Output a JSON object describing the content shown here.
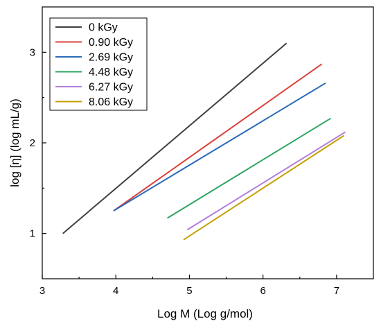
{
  "chart_data": {
    "type": "line",
    "title": "",
    "xlabel": "Log M (Log g/mol)",
    "ylabel": "log [η] (log mL/g)",
    "xlim": [
      3,
      7.5
    ],
    "ylim": [
      0.5,
      3.5
    ],
    "x_ticks": [
      3,
      4,
      5,
      6,
      7
    ],
    "y_ticks": [
      1,
      2,
      3
    ],
    "x_tick_labels": [
      "3",
      "4",
      "5",
      "6",
      "7"
    ],
    "y_tick_labels": [
      "1",
      "2",
      "3"
    ],
    "grid": false,
    "legend_position": "top-left",
    "series": [
      {
        "name": "0 kGy",
        "color": "#404040",
        "x": [
          3.28,
          6.32
        ],
        "y": [
          1.0,
          3.1
        ]
      },
      {
        "name": "0.90 kGy",
        "color": "#d9423b",
        "x": [
          3.97,
          6.8
        ],
        "y": [
          1.25,
          2.87
        ]
      },
      {
        "name": "2.69 kGy",
        "color": "#2a6ab8",
        "x": [
          3.97,
          6.85
        ],
        "y": [
          1.25,
          2.66
        ]
      },
      {
        "name": "4.48 kGy",
        "color": "#2ca563",
        "x": [
          4.7,
          6.92
        ],
        "y": [
          1.17,
          2.27
        ]
      },
      {
        "name": "6.27 kGy",
        "color": "#b07ed8",
        "x": [
          4.97,
          7.12
        ],
        "y": [
          1.04,
          2.12
        ]
      },
      {
        "name": "8.06 kGy",
        "color": "#c4a000",
        "x": [
          4.92,
          7.1
        ],
        "y": [
          0.93,
          2.08
        ]
      }
    ]
  }
}
